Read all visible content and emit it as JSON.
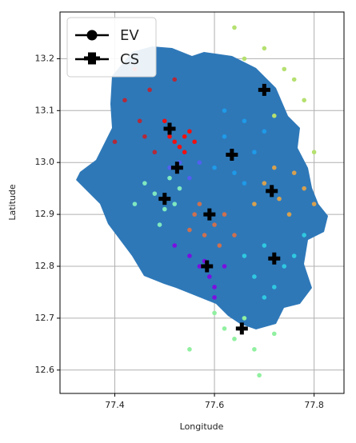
{
  "chart_data": {
    "type": "scatter",
    "xlabel": "Longitude",
    "ylabel": "Latitude",
    "xlim": [
      77.29,
      77.86
    ],
    "ylim": [
      12.555,
      13.29
    ],
    "xticks": [
      77.4,
      77.6,
      77.8
    ],
    "yticks": [
      12.6,
      12.7,
      12.8,
      12.9,
      {
        "value": 13,
        "label": "13.0"
      },
      13.1,
      13.2
    ],
    "grid": true,
    "legend": "upper left",
    "series": [
      {
        "name": "EV",
        "marker": "circle",
        "x": [
          77.52,
          77.54,
          77.53,
          77.55,
          77.51,
          77.56,
          77.54,
          77.5,
          77.42,
          77.45,
          77.4,
          77.47,
          77.48,
          77.44,
          77.52,
          77.46,
          77.62,
          77.66,
          77.64,
          77.68,
          77.6,
          77.7,
          77.66,
          77.62,
          77.64,
          77.7,
          77.74,
          77.78,
          77.8,
          77.72,
          77.66,
          77.76,
          77.7,
          77.73,
          77.76,
          77.78,
          77.68,
          77.75,
          77.72,
          77.8,
          77.56,
          77.6,
          77.58,
          77.62,
          77.55,
          77.64,
          77.57,
          77.61,
          77.48,
          77.5,
          77.46,
          77.52,
          77.49,
          77.53,
          77.44,
          77.51,
          77.58,
          77.59,
          77.57,
          77.6,
          77.55,
          77.62,
          77.52,
          77.6,
          77.7,
          77.74,
          77.68,
          77.72,
          77.76,
          77.66,
          77.78,
          77.7,
          77.64,
          77.66,
          77.62,
          77.68,
          77.6,
          77.69,
          77.55,
          77.72,
          77.53,
          77.55,
          77.57,
          77.51
        ],
        "y": [
          13.04,
          13.05,
          13.03,
          13.06,
          13.05,
          13.04,
          13.02,
          13.08,
          13.12,
          13.08,
          13.04,
          13.14,
          13.02,
          13.18,
          13.16,
          13.05,
          13.05,
          13.08,
          12.98,
          13.02,
          12.99,
          13.06,
          12.96,
          13.1,
          13.26,
          13.22,
          13.18,
          13.12,
          13.02,
          13.09,
          13.2,
          13.16,
          12.96,
          12.93,
          12.98,
          12.95,
          12.92,
          12.9,
          12.99,
          12.92,
          12.9,
          12.88,
          12.86,
          12.9,
          12.87,
          12.86,
          12.92,
          12.84,
          12.94,
          12.91,
          12.96,
          12.92,
          12.88,
          12.95,
          12.92,
          12.97,
          12.81,
          12.78,
          12.8,
          12.76,
          12.82,
          12.8,
          12.84,
          12.74,
          12.84,
          12.8,
          12.78,
          12.76,
          12.82,
          12.82,
          12.86,
          12.74,
          12.66,
          12.7,
          12.68,
          12.64,
          12.71,
          12.59,
          12.64,
          12.67,
          13.0,
          12.97,
          13.0,
          12.99
        ],
        "colors": [
          "#f01010",
          "#f01010",
          "#f01010",
          "#f01010",
          "#f01010",
          "#f01010",
          "#f01010",
          "#f01010",
          "#b22a3a",
          "#b22a3a",
          "#b22a3a",
          "#b22a3a",
          "#b22a3a",
          "#b22a3a",
          "#b22a3a",
          "#b22a3a",
          "#1f9ae8",
          "#1f9ae8",
          "#1f9ae8",
          "#1f9ae8",
          "#1f9ae8",
          "#1f9ae8",
          "#1f9ae8",
          "#1f9ae8",
          "#b5e070",
          "#b5e070",
          "#b5e070",
          "#b5e070",
          "#b5e070",
          "#b5e070",
          "#b5e070",
          "#b5e070",
          "#d5a050",
          "#d5a050",
          "#d5a050",
          "#d5a050",
          "#d5a050",
          "#d5a050",
          "#d5a050",
          "#d5a050",
          "#cc7050",
          "#cc7050",
          "#cc7050",
          "#cc7050",
          "#cc7050",
          "#cc7050",
          "#cc7050",
          "#cc7050",
          "#7fe8c0",
          "#7fe8c0",
          "#7fe8c0",
          "#7fe8c0",
          "#7fe8c0",
          "#7fe8c0",
          "#7fe8c0",
          "#7fe8c0",
          "#7a10e0",
          "#7a10e0",
          "#7a10e0",
          "#7a10e0",
          "#7a10e0",
          "#7a10e0",
          "#7a10e0",
          "#7a10e0",
          "#30c8e0",
          "#30c8e0",
          "#30c8e0",
          "#30c8e0",
          "#30c8e0",
          "#30c8e0",
          "#30c8e0",
          "#30c8e0",
          "#90f0a0",
          "#90f0a0",
          "#90f0a0",
          "#90f0a0",
          "#90f0a0",
          "#90f0a0",
          "#90f0a0",
          "#90f0a0",
          "#5060f0",
          "#5060f0",
          "#5060f0",
          "#5060f0"
        ]
      },
      {
        "name": "CS",
        "marker": "plus",
        "color": "#000000",
        "x": [
          77.7,
          77.51,
          77.635,
          77.525,
          77.715,
          77.5,
          77.59,
          77.72,
          77.585,
          77.655
        ],
        "y": [
          13.14,
          13.065,
          13.015,
          12.99,
          12.945,
          12.93,
          12.9,
          12.815,
          12.8,
          12.68
        ]
      }
    ]
  }
}
